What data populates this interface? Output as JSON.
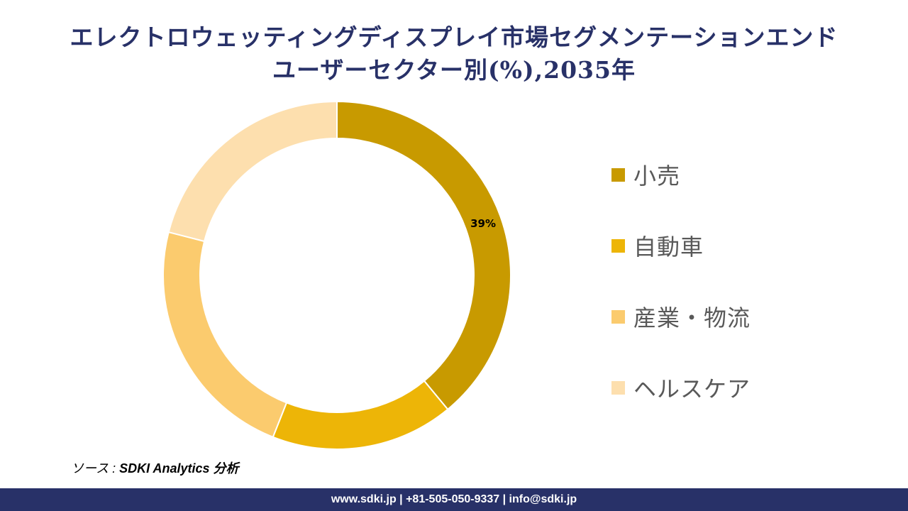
{
  "header": {
    "title_line1": "エレクトロウェッティングディスプレイ市場セグメンテーションエンド",
    "title_line2": "ユーザーセクター別(%),2035年"
  },
  "chart_data": {
    "type": "pie",
    "subtype": "donut",
    "title": "エレクトロウェッティングディスプレイ市場セグメンテーションエンドユーザーセクター別(%),2035年",
    "categories": [
      "小売",
      "自動車",
      "産業・物流",
      "ヘルスケア"
    ],
    "values": [
      39,
      17,
      23,
      21
    ],
    "colors": [
      "#C89A00",
      "#EDB507",
      "#FBCB6E",
      "#FDDFAE"
    ],
    "data_labels": [
      {
        "category": "小売",
        "text": "39%"
      }
    ],
    "legend_position": "right",
    "start_angle_deg": 0,
    "direction": "clockwise"
  },
  "legend": {
    "items": [
      {
        "label": "小売",
        "color": "#C89A00"
      },
      {
        "label": "自動車",
        "color": "#EDB507"
      },
      {
        "label": "産業・物流",
        "color": "#FBCB6E"
      },
      {
        "label": "ヘルスケア",
        "color": "#FDDFAE"
      }
    ]
  },
  "source": {
    "prefix": "ソース : ",
    "text": "SDKI Analytics 分析"
  },
  "footer": {
    "contact": "www.sdki.jp | +81-505-050-9337 | info@sdki.jp"
  },
  "colors": {
    "title": "#283168",
    "footer_bg": "#283168"
  }
}
